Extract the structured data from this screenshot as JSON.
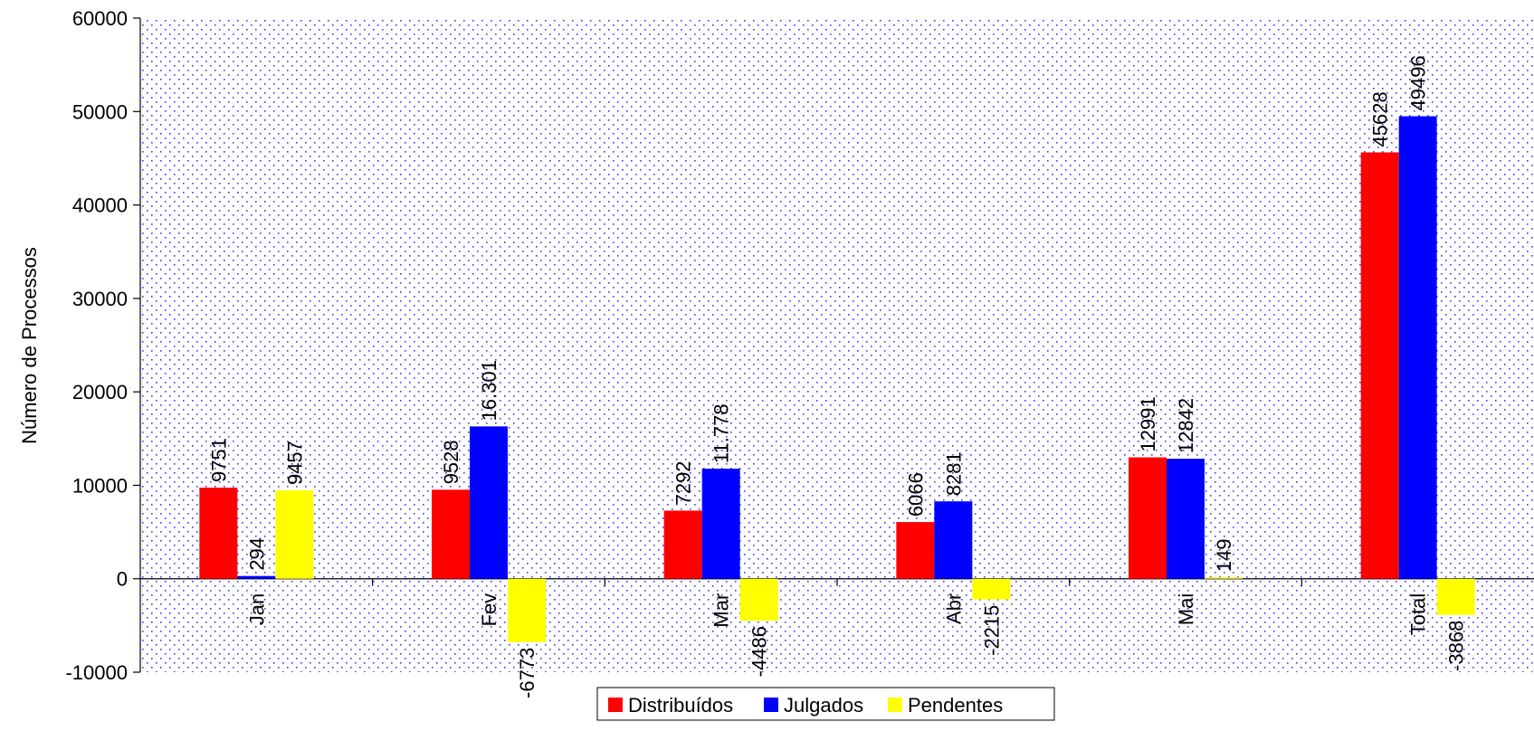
{
  "chart_data": {
    "type": "bar",
    "categories": [
      "Jan",
      "Fev",
      "Mar",
      "Abr",
      "Mai",
      "Total"
    ],
    "series": [
      {
        "name": "Distribuídos",
        "color": "#ff0000",
        "values": [
          9751,
          9528,
          7292,
          6066,
          12991,
          45628
        ],
        "labels": [
          "9751",
          "9528",
          "7292",
          "6066",
          "12991",
          "45628"
        ]
      },
      {
        "name": "Julgados",
        "color": "#0000ff",
        "values": [
          294,
          16301,
          11778,
          8281,
          12842,
          49496
        ],
        "labels": [
          "294",
          "16.301",
          "11.778",
          "8281",
          "12842",
          "49496"
        ]
      },
      {
        "name": "Pendentes",
        "color": "#ffff00",
        "values": [
          9457,
          -6773,
          -4486,
          -2215,
          149,
          -3868
        ],
        "labels": [
          "9457",
          "-6773",
          "-4486",
          "-2215",
          "149",
          "-3868"
        ]
      }
    ],
    "ylabel": "Número de Processos",
    "xlabel": "",
    "ylim": [
      -10000,
      60000
    ],
    "yticks": [
      -10000,
      0,
      10000,
      20000,
      30000,
      40000,
      50000,
      60000
    ],
    "ytick_labels": [
      "-10000",
      "0",
      "10000",
      "20000",
      "30000",
      "40000",
      "50000",
      "60000"
    ],
    "grid": false,
    "background": "blue dotted pattern",
    "legend": {
      "position": "bottom",
      "entries": [
        "Distribuídos",
        "Julgados",
        "Pendentes"
      ]
    }
  }
}
